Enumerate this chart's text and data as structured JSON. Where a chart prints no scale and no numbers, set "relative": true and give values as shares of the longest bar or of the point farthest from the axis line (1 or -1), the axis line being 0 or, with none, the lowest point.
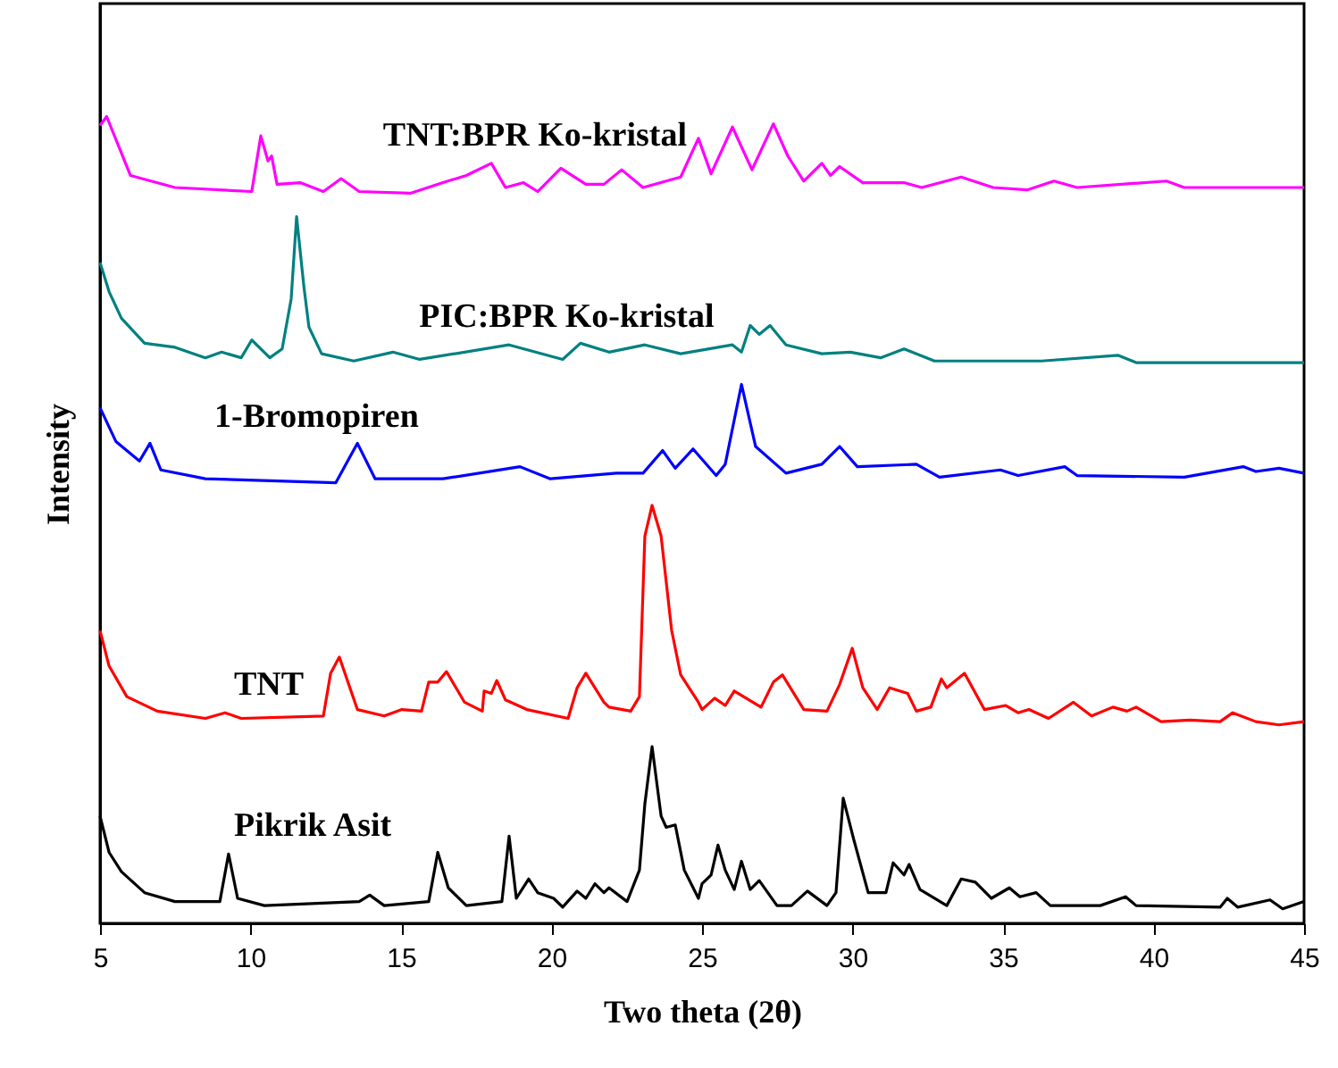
{
  "chart_data": {
    "type": "line",
    "relative": true,
    "xlabel": "Two theta (2θ)",
    "ylabel": "Intensity",
    "xlim": [
      5,
      45
    ],
    "xticks": [
      5,
      10,
      15,
      20,
      25,
      30,
      35,
      40,
      45
    ],
    "grid": false,
    "marker": "none",
    "line_style": "solid",
    "series": [
      {
        "name": "TNT:BPR Ko-kristal",
        "color": "#ff00ff",
        "x": [
          5.0,
          5.22,
          6.01,
          7.49,
          10.04,
          10.34,
          10.58,
          10.7,
          10.88,
          11.65,
          12.42,
          13.01,
          13.61,
          15.33,
          16.39,
          17.17,
          18.0,
          18.47,
          19.07,
          19.54,
          20.31,
          21.14,
          21.74,
          22.33,
          23.04,
          24.29,
          24.88,
          25.3,
          26.01,
          26.66,
          27.37,
          27.85,
          28.38,
          28.98,
          29.27,
          29.57,
          30.34,
          31.71,
          32.3,
          33.61,
          34.67,
          35.8,
          36.69,
          37.46,
          40.43,
          41.02,
          45.0
        ],
        "values": [
          0.989,
          1.0,
          0.927,
          0.912,
          0.907,
          0.976,
          0.945,
          0.951,
          0.916,
          0.918,
          0.907,
          0.923,
          0.907,
          0.905,
          0.918,
          0.927,
          0.942,
          0.912,
          0.918,
          0.907,
          0.936,
          0.916,
          0.916,
          0.934,
          0.912,
          0.925,
          0.973,
          0.929,
          0.987,
          0.934,
          0.991,
          0.951,
          0.92,
          0.942,
          0.927,
          0.938,
          0.918,
          0.918,
          0.912,
          0.925,
          0.912,
          0.909,
          0.92,
          0.912,
          0.92,
          0.912,
          0.912
        ]
      },
      {
        "name": "PIC:BPR Ko-kristal",
        "color": "#008080",
        "x": [
          5.0,
          5.3,
          5.71,
          6.48,
          7.49,
          8.5,
          9.04,
          9.69,
          10.04,
          10.64,
          11.05,
          11.35,
          11.53,
          11.77,
          11.94,
          12.36,
          13.43,
          14.73,
          15.62,
          18.59,
          20.37,
          20.96,
          21.91,
          23.1,
          24.29,
          26.01,
          26.31,
          26.6,
          26.9,
          27.26,
          27.79,
          28.98,
          29.93,
          30.93,
          31.71,
          32.72,
          36.28,
          38.83,
          39.42,
          45.0
        ],
        "values": [
          0.819,
          0.783,
          0.75,
          0.719,
          0.714,
          0.701,
          0.708,
          0.701,
          0.723,
          0.701,
          0.712,
          0.774,
          0.876,
          0.79,
          0.739,
          0.706,
          0.697,
          0.708,
          0.699,
          0.717,
          0.699,
          0.719,
          0.708,
          0.717,
          0.706,
          0.717,
          0.708,
          0.741,
          0.73,
          0.741,
          0.717,
          0.706,
          0.708,
          0.701,
          0.712,
          0.697,
          0.697,
          0.704,
          0.695,
          0.695
        ]
      },
      {
        "name": "1-Bromopiren",
        "color": "#0000ff",
        "x": [
          5.0,
          5.53,
          6.31,
          6.66,
          7.02,
          8.5,
          12.83,
          13.55,
          14.14,
          16.39,
          18.95,
          19.96,
          22.15,
          23.04,
          23.69,
          24.11,
          24.7,
          25.47,
          25.77,
          26.31,
          26.78,
          27.79,
          28.98,
          29.57,
          30.16,
          32.12,
          32.89,
          34.91,
          35.5,
          37.05,
          37.46,
          41.02,
          42.98,
          43.4,
          44.17,
          45.0
        ],
        "values": [
          0.639,
          0.597,
          0.573,
          0.595,
          0.562,
          0.551,
          0.546,
          0.595,
          0.551,
          0.551,
          0.566,
          0.551,
          0.558,
          0.558,
          0.586,
          0.564,
          0.588,
          0.555,
          0.569,
          0.668,
          0.591,
          0.558,
          0.569,
          0.591,
          0.566,
          0.569,
          0.553,
          0.562,
          0.555,
          0.566,
          0.555,
          0.553,
          0.566,
          0.56,
          0.564,
          0.558
        ]
      },
      {
        "name": "TNT",
        "color": "#ff0000",
        "x": [
          5.0,
          5.3,
          5.89,
          6.9,
          8.5,
          9.15,
          9.69,
          12.42,
          12.66,
          12.95,
          13.55,
          14.44,
          15.03,
          15.68,
          15.92,
          16.22,
          16.51,
          17.11,
          17.7,
          17.76,
          18.0,
          18.18,
          18.47,
          19.18,
          20.55,
          20.85,
          21.14,
          21.74,
          21.91,
          22.63,
          22.92,
          23.1,
          23.34,
          23.64,
          23.99,
          24.29,
          24.88,
          25.0,
          25.42,
          25.77,
          26.07,
          26.96,
          27.37,
          27.67,
          28.38,
          29.15,
          29.57,
          29.99,
          30.34,
          30.82,
          31.23,
          31.83,
          32.12,
          32.6,
          32.95,
          33.13,
          33.72,
          34.38,
          35.09,
          35.5,
          35.86,
          36.51,
          37.34,
          37.94,
          38.65,
          39.12,
          39.42,
          40.25,
          41.2,
          42.21,
          42.63,
          43.4,
          44.17,
          45.0
        ],
        "values": [
          0.363,
          0.319,
          0.281,
          0.263,
          0.254,
          0.261,
          0.254,
          0.257,
          0.31,
          0.33,
          0.265,
          0.257,
          0.265,
          0.263,
          0.299,
          0.299,
          0.312,
          0.274,
          0.263,
          0.288,
          0.285,
          0.301,
          0.277,
          0.265,
          0.254,
          0.292,
          0.31,
          0.274,
          0.268,
          0.263,
          0.281,
          0.48,
          0.518,
          0.48,
          0.363,
          0.308,
          0.274,
          0.265,
          0.279,
          0.27,
          0.288,
          0.268,
          0.299,
          0.308,
          0.265,
          0.263,
          0.296,
          0.341,
          0.292,
          0.265,
          0.292,
          0.285,
          0.263,
          0.268,
          0.303,
          0.292,
          0.31,
          0.265,
          0.27,
          0.261,
          0.265,
          0.254,
          0.274,
          0.257,
          0.268,
          0.263,
          0.268,
          0.25,
          0.252,
          0.25,
          0.261,
          0.25,
          0.246,
          0.25
        ]
      },
      {
        "name": "Pikrik Asit",
        "color": "#000000",
        "x": [
          5.0,
          5.3,
          5.71,
          6.48,
          7.49,
          8.98,
          9.27,
          9.57,
          10.46,
          13.61,
          13.96,
          14.44,
          15.92,
          16.22,
          16.57,
          17.17,
          18.35,
          18.59,
          18.83,
          19.24,
          19.54,
          20.07,
          20.37,
          20.85,
          21.14,
          21.44,
          21.74,
          21.91,
          22.51,
          22.92,
          23.1,
          23.34,
          23.64,
          23.81,
          24.11,
          24.41,
          24.88,
          25.0,
          25.3,
          25.53,
          25.77,
          26.07,
          26.31,
          26.6,
          26.9,
          27.49,
          27.97,
          28.5,
          29.15,
          29.45,
          29.69,
          30.04,
          30.52,
          31.11,
          31.35,
          31.71,
          31.88,
          32.24,
          33.13,
          33.61,
          34.08,
          34.61,
          35.21,
          35.56,
          36.1,
          36.57,
          38.23,
          39.07,
          39.42,
          42.21,
          42.45,
          42.8,
          43.87,
          44.29,
          45.0
        ],
        "values": [
          0.133,
          0.088,
          0.064,
          0.038,
          0.027,
          0.027,
          0.086,
          0.031,
          0.022,
          0.027,
          0.035,
          0.022,
          0.027,
          0.088,
          0.044,
          0.022,
          0.027,
          0.108,
          0.031,
          0.055,
          0.038,
          0.031,
          0.02,
          0.04,
          0.031,
          0.049,
          0.038,
          0.044,
          0.027,
          0.066,
          0.148,
          0.219,
          0.133,
          0.119,
          0.122,
          0.066,
          0.031,
          0.049,
          0.06,
          0.097,
          0.066,
          0.042,
          0.077,
          0.042,
          0.053,
          0.022,
          0.022,
          0.04,
          0.022,
          0.038,
          0.155,
          0.104,
          0.038,
          0.038,
          0.075,
          0.06,
          0.073,
          0.042,
          0.022,
          0.055,
          0.051,
          0.031,
          0.044,
          0.033,
          0.038,
          0.022,
          0.022,
          0.033,
          0.022,
          0.02,
          0.031,
          0.02,
          0.029,
          0.018,
          0.027
        ]
      }
    ]
  }
}
